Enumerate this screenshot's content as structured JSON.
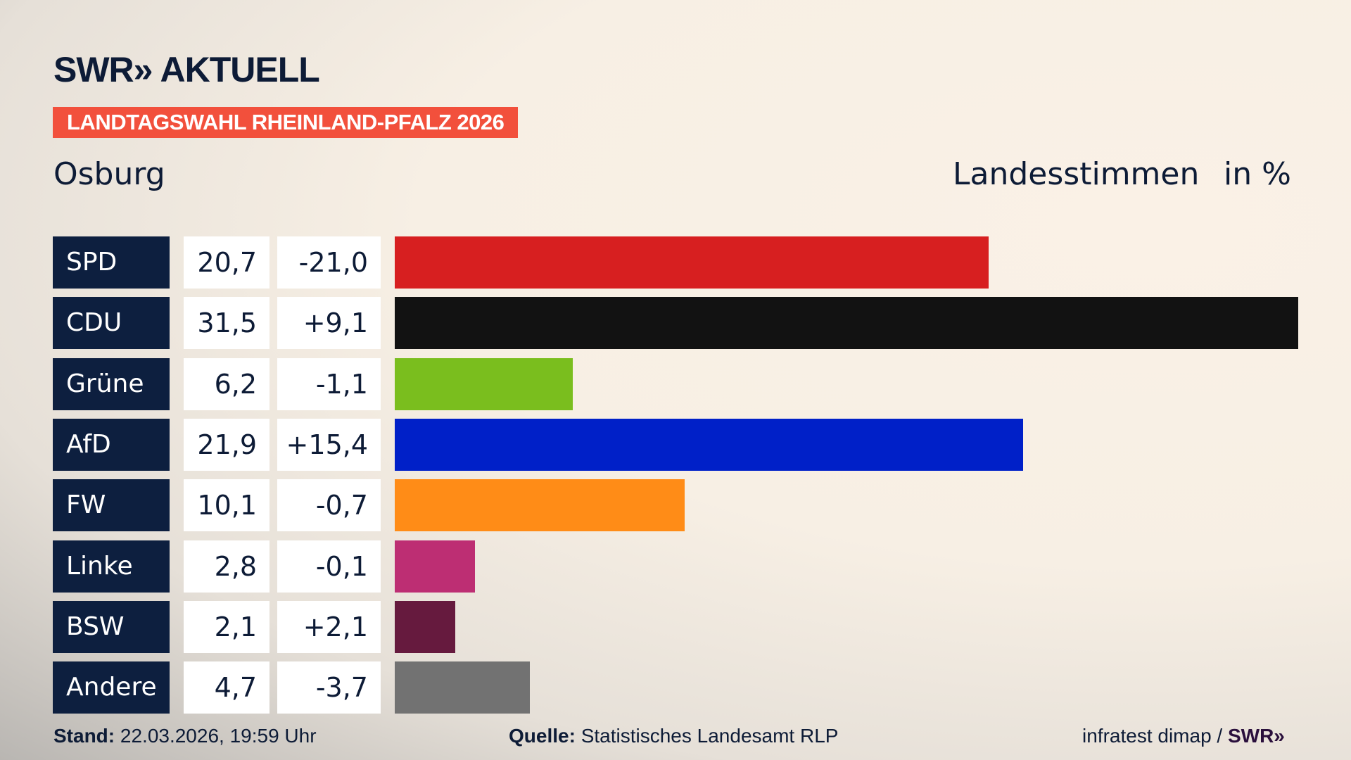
{
  "header": {
    "logo": "SWR» AKTUELL",
    "banner": "LANDTAGSWAHL RHEINLAND-PFALZ 2026",
    "place": "Osburg",
    "measure": "Landesstimmen",
    "unit": "in %"
  },
  "chart_data": {
    "type": "bar",
    "orientation": "horizontal",
    "categories": [
      "SPD",
      "CDU",
      "Grüne",
      "AfD",
      "FW",
      "Linke",
      "BSW",
      "Andere"
    ],
    "values": [
      20.7,
      31.5,
      6.2,
      21.9,
      10.1,
      2.8,
      2.1,
      4.7
    ],
    "value_labels": [
      "20,7",
      "31,5",
      "6,2",
      "21,9",
      "10,1",
      "2,8",
      "2,1",
      "4,7"
    ],
    "diff_labels": [
      "-21,0",
      "+9,1",
      "-1,1",
      "+15,4",
      "-0,7",
      "-0,1",
      "+2,1",
      "-3,7"
    ],
    "colors": [
      "#d71f20",
      "#121212",
      "#7abe1e",
      "#0020c8",
      "#ff8c17",
      "#bd2e73",
      "#661a3e",
      "#727272"
    ],
    "xlim": [
      0,
      31.5
    ]
  },
  "footer": {
    "stand_label": "Stand:",
    "stand_value": "22.03.2026, 19:59 Uhr",
    "source_label": "Quelle:",
    "source_value": "Statistisches Landesamt RLP",
    "credit": "infratest dimap /",
    "credit_logo": "SWR»"
  }
}
